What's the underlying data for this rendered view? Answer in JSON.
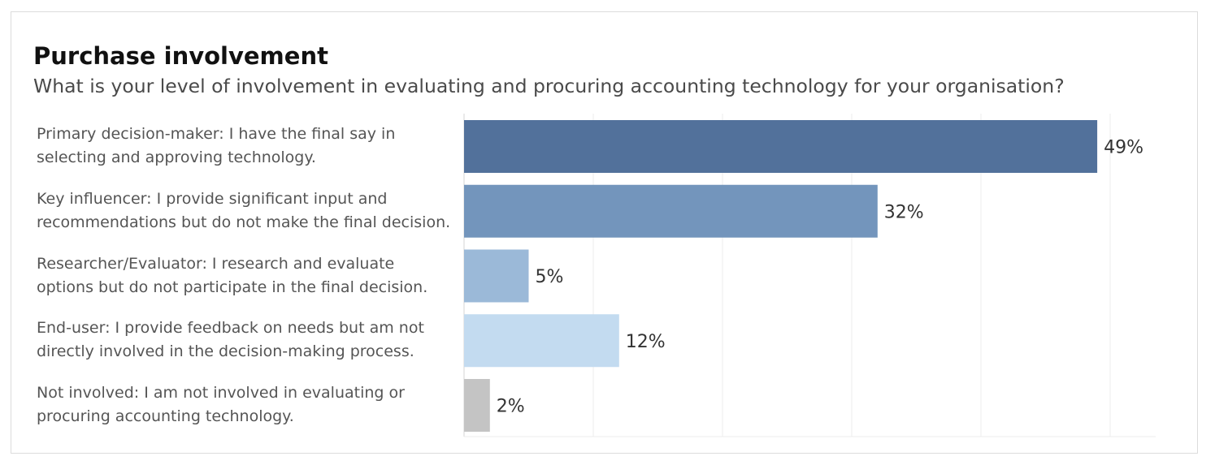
{
  "header": {
    "title": "Purchase involvement",
    "subtitle": "What is your level of involvement in evaluating and procuring accounting technology for your organisation?"
  },
  "chart_data": {
    "type": "bar",
    "orientation": "horizontal",
    "title": "Purchase involvement",
    "subtitle": "What is your level of involvement in evaluating and procuring accounting technology for your organisation?",
    "categories": [
      "Primary decision-maker: I have the final say in selecting and approving technology.",
      "Key influencer: I provide significant input and recommendations but do not make the final decision.",
      "Researcher/Evaluator: I research and evaluate options but do not participate in the final decision.",
      "End-user: I provide feedback on needs but am not directly involved in the decision-making process.",
      "Not involved: I am not involved in evaluating or procuring accounting technology."
    ],
    "category_lines": [
      [
        "Primary decision-maker: I have the final say in",
        "selecting and approving technology."
      ],
      [
        "Key influencer: I provide significant input and",
        "recommendations but do not make the final decision."
      ],
      [
        "Researcher/Evaluator: I research and evaluate",
        "options but do not participate in the final decision."
      ],
      [
        "End-user: I provide feedback on needs but am not",
        "directly involved in the decision-making process."
      ],
      [
        "Not involved: I am not involved in evaluating or",
        "procuring accounting technology."
      ]
    ],
    "values": [
      49,
      32,
      5,
      12,
      2
    ],
    "value_labels": [
      "49%",
      "32%",
      "5%",
      "12%",
      "2%"
    ],
    "colors": [
      "#52719b",
      "#7395bc",
      "#9bb9d8",
      "#c3dbf0",
      "#c4c4c4"
    ],
    "xlabel": "",
    "ylabel": "",
    "xlim": [
      0,
      55
    ],
    "x_gridlines": [
      0,
      10,
      20,
      30,
      40,
      50
    ],
    "grid": true,
    "legend": "none"
  }
}
